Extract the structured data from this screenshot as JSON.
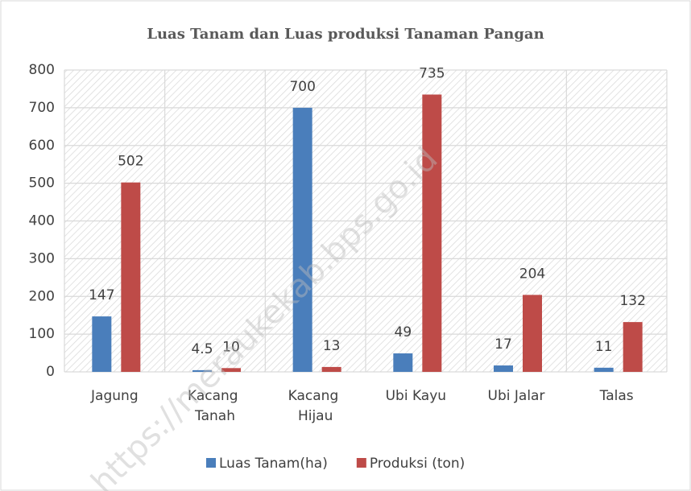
{
  "chart_data": {
    "type": "bar",
    "title": "Luas Tanam dan Luas produksi Tanaman Pangan",
    "categories": [
      "Jagung",
      "Kacang Tanah",
      "Kacang Hijau",
      "Ubi Kayu",
      "Ubi Jalar",
      "Talas"
    ],
    "series": [
      {
        "name": "Luas Tanam(ha)",
        "color": "#4a7ebb",
        "values": [
          147,
          4.5,
          700,
          49,
          17,
          11
        ]
      },
      {
        "name": "Produksi (ton)",
        "color": "#be4b48",
        "values": [
          502,
          10,
          13,
          735,
          204,
          132
        ]
      }
    ],
    "ylim": [
      0,
      800
    ],
    "yticks": [
      0,
      100,
      200,
      300,
      400,
      500,
      600,
      700,
      800
    ],
    "grid": true,
    "legend": "bottom",
    "watermark": "https://meraukekab.bps.go.id"
  }
}
